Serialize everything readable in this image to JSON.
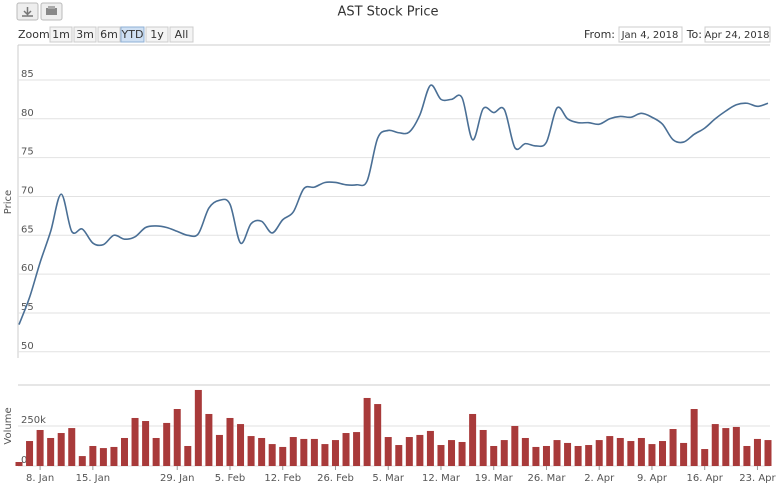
{
  "title": "AST Stock Price",
  "range_selector": {
    "zoom_label": "Zoom",
    "buttons": [
      "1m",
      "3m",
      "6m",
      "YTD",
      "1y",
      "All"
    ],
    "selected": "YTD",
    "from_label": "From:",
    "from": "Jan 4, 2018",
    "to_label": "To:",
    "to": "Apr 24, 2018"
  },
  "chart_data": [
    {
      "type": "line",
      "ylabel": "Price",
      "color": "#4a6f95",
      "grid": true,
      "ylim": [
        49.2,
        89.5
      ],
      "yticks": [
        50,
        55,
        60,
        65,
        70,
        75,
        80,
        85
      ],
      "values": [
        53.5,
        57,
        61.5,
        65.5,
        70.3,
        65.5,
        65.8,
        64,
        63.8,
        65,
        64.5,
        64.8,
        66,
        66.2,
        66,
        65.5,
        65,
        65.2,
        68.5,
        69.5,
        69,
        64,
        66.5,
        66.8,
        65.3,
        67,
        68,
        71,
        71.2,
        71.8,
        71.8,
        71.5,
        71.5,
        72,
        77.5,
        78.5,
        78.2,
        78.3,
        80.5,
        84.3,
        82.5,
        82.5,
        82.7,
        77.3,
        81.3,
        80.8,
        81.2,
        76.3,
        76.8,
        76.5,
        77,
        81.4,
        80,
        79.5,
        79.5,
        79.3,
        80,
        80.3,
        80.2,
        80.7,
        80.2,
        79.3,
        77.3,
        77,
        78,
        78.8,
        80,
        81,
        81.8,
        82,
        81.6,
        82
      ]
    },
    {
      "type": "bar",
      "ylabel": "Volume",
      "color": "#a83a3a",
      "grid": true,
      "ylim": [
        0,
        506000
      ],
      "yticks": [
        {
          "value": 0,
          "label": "0k"
        },
        {
          "value": 250000,
          "label": "250k"
        }
      ],
      "categories": [
        null,
        null,
        "8. Jan",
        null,
        null,
        null,
        null,
        "15. Jan",
        null,
        null,
        null,
        null,
        null,
        null,
        null,
        "29. Jan",
        null,
        null,
        null,
        null,
        "5. Feb",
        null,
        null,
        null,
        null,
        "12. Feb",
        null,
        null,
        null,
        null,
        "26. Feb",
        null,
        null,
        null,
        null,
        "5. Mar",
        null,
        null,
        null,
        null,
        "12. Mar",
        null,
        null,
        null,
        null,
        "19. Mar",
        null,
        null,
        null,
        null,
        "26. Mar",
        null,
        null,
        null,
        null,
        "2. Apr",
        null,
        null,
        null,
        null,
        "9. Apr",
        null,
        null,
        null,
        null,
        "16. Apr",
        null,
        null,
        null,
        null,
        "23. Apr",
        null
      ],
      "values": [
        25000,
        156000,
        225000,
        175000,
        206000,
        237000,
        62000,
        125000,
        112000,
        119000,
        175000,
        300000,
        281000,
        175000,
        269000,
        356000,
        125000,
        475000,
        325000,
        194000,
        300000,
        262000,
        187000,
        175000,
        137000,
        119000,
        181000,
        169000,
        169000,
        137000,
        162000,
        206000,
        212000,
        425000,
        387000,
        181000,
        131000,
        181000,
        194000,
        219000,
        131000,
        162000,
        150000,
        325000,
        225000,
        125000,
        162000,
        250000,
        175000,
        119000,
        125000,
        162000,
        144000,
        125000,
        131000,
        162000,
        187000,
        175000,
        156000,
        175000,
        137000,
        156000,
        231000,
        144000,
        356000,
        106000,
        262000,
        237000,
        244000,
        125000,
        169000,
        162000
      ]
    }
  ]
}
